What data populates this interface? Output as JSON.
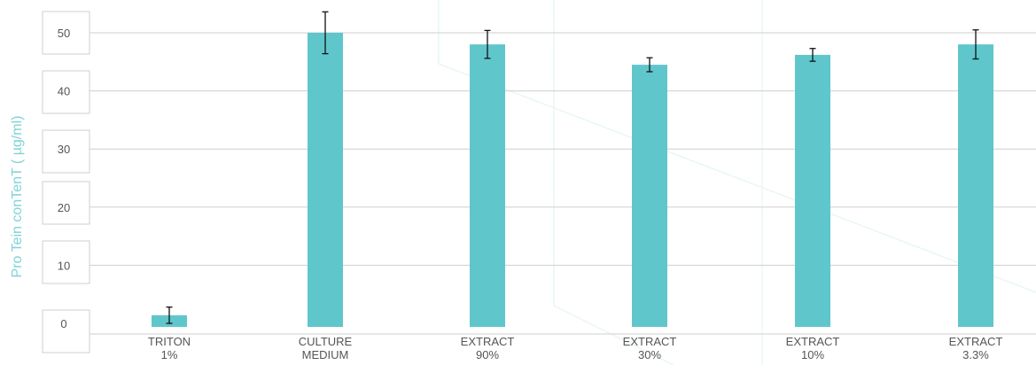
{
  "chart_data": {
    "type": "bar",
    "title": "",
    "xlabel": "",
    "ylabel": "Pro Tein conTenT ( µg/ml)",
    "ylim": [
      0,
      50
    ],
    "yticks": [
      0,
      10,
      20,
      30,
      40,
      50
    ],
    "grid": true,
    "categories": [
      [
        "TRITON",
        "1%"
      ],
      [
        "CULTURE",
        "MEDIUM"
      ],
      [
        "EXTRACT",
        "90%"
      ],
      [
        "EXTRACT",
        "30%"
      ],
      [
        "EXTRACT",
        "10%"
      ],
      [
        "EXTRACT",
        "3.3%"
      ]
    ],
    "series": [
      {
        "values": [
          1.4,
          50,
          48,
          44.5,
          46.2,
          48
        ],
        "errors": [
          1.4,
          3.6,
          2.4,
          1.2,
          1.1,
          2.5
        ]
      }
    ],
    "colors": {
      "bar": "#5fc6cc",
      "axis_title": "#7fd3d6",
      "grid": "#cfcfcf"
    }
  }
}
